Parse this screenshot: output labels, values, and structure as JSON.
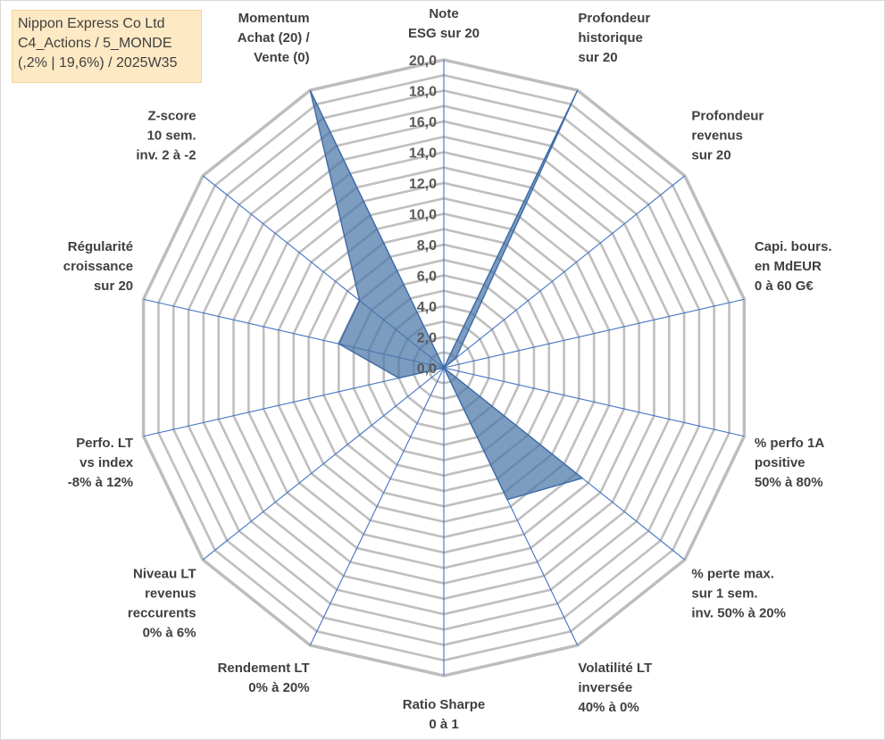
{
  "title_box": {
    "lines": [
      "Nippon Express Co Ltd",
      "C4_Actions / 5_MONDE",
      "(,2% | 19,6%) / 2025W35"
    ]
  },
  "chart_data": {
    "type": "radar",
    "title": "Nippon Express Co Ltd",
    "rmin": 0,
    "rmax": 20,
    "tick_step": 2,
    "tick_labels": [
      "0,0",
      "2,0",
      "4,0",
      "6,0",
      "8,0",
      "10,0",
      "12,0",
      "14,0",
      "16,0",
      "18,0",
      "20,0"
    ],
    "grid_rings": 20,
    "categories": [
      [
        "Note",
        "ESG sur 20"
      ],
      [
        "Profondeur",
        "historique",
        "sur 20"
      ],
      [
        "Profondeur",
        "revenus",
        "sur 20"
      ],
      [
        "Capi. bours.",
        "en MdEUR",
        "0 à 60 G€"
      ],
      [
        "% perfo 1A",
        "positive",
        "50% à 80%"
      ],
      [
        "% perte max.",
        "sur 1 sem.",
        "inv. 50% à 20%"
      ],
      [
        "Volatilité LT",
        "inversée",
        "40% à 0%"
      ],
      [
        "Ratio Sharpe",
        "0 à 1"
      ],
      [
        "Rendement LT",
        "0% à 20%"
      ],
      [
        "Niveau LT",
        "revenus",
        "reccurents",
        "0% à 6%"
      ],
      [
        "Perfo. LT",
        "vs index",
        "-8% à 12%"
      ],
      [
        "Régularité",
        "croissance",
        "sur 20"
      ],
      [
        "Z-score",
        "10 sem.",
        "inv. 2 à -2"
      ],
      [
        "Momentum",
        "Achat (20) /",
        "Vente (0)"
      ]
    ],
    "series": [
      {
        "values": [
          0,
          20,
          1,
          0,
          0,
          11.5,
          9.5,
          0,
          0,
          0,
          3,
          7,
          7,
          20
        ],
        "color": "#4a76a8"
      }
    ],
    "colors": {
      "fill": "#4a76a8",
      "stroke": "#3e6aa8",
      "ring": "#bfbfbf",
      "outer_ring": "#bdbdbd",
      "spoke": "#4472c4"
    }
  }
}
